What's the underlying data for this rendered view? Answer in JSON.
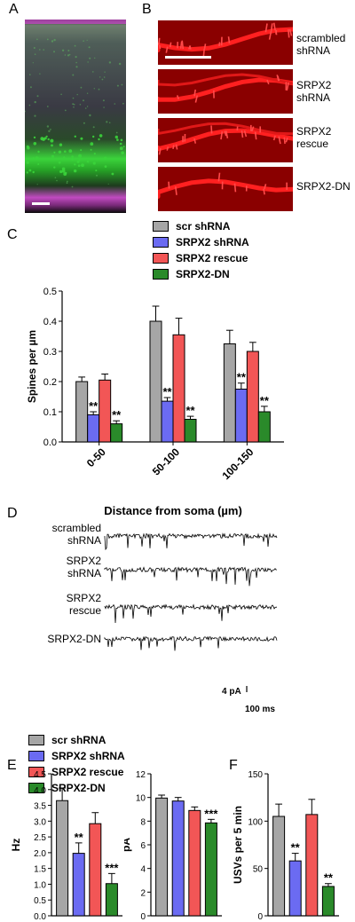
{
  "panels": {
    "a": "A",
    "b": "B",
    "c": "C",
    "d": "D",
    "e": "E",
    "f": "F"
  },
  "panel_b_labels": [
    [
      "scrambled",
      "shRNA"
    ],
    [
      "SRPX2",
      "shRNA"
    ],
    [
      "SRPX2",
      "rescue"
    ],
    [
      "SRPX2-DN"
    ]
  ],
  "panel_d_labels": [
    [
      "scrambled",
      "shRNA"
    ],
    [
      "SRPX2",
      "shRNA"
    ],
    [
      "SRPX2",
      "rescue"
    ],
    [
      "SRPX2-DN"
    ]
  ],
  "scale_bar": {
    "y_label": "4 pA",
    "x_label": "100 ms"
  },
  "legend": [
    {
      "label": "scr shRNA",
      "color": "#a6a6a6"
    },
    {
      "label": "SRPX2 shRNA",
      "color": "#6b6bf2"
    },
    {
      "label": "SRPX2 rescue",
      "color": "#f25656"
    },
    {
      "label": "SRPX2-DN",
      "color": "#2a8a2a"
    }
  ],
  "colors": {
    "fluor_green": "#3bd43b",
    "fluor_magenta": "#c04ac0",
    "dendrite_red": "#ff2020",
    "dendrite_bg": "#8a0000"
  },
  "chart_data": [
    {
      "id": "C",
      "type": "bar",
      "categories": [
        "0-50",
        "50-100",
        "100-150"
      ],
      "series": [
        {
          "name": "scr shRNA",
          "values": [
            0.2,
            0.4,
            0.325
          ],
          "errors": [
            0.015,
            0.05,
            0.045
          ]
        },
        {
          "name": "SRPX2 shRNA",
          "values": [
            0.09,
            0.135,
            0.175
          ],
          "errors": [
            0.01,
            0.012,
            0.02
          ]
        },
        {
          "name": "SRPX2 rescue",
          "values": [
            0.205,
            0.355,
            0.3
          ],
          "errors": [
            0.02,
            0.055,
            0.03
          ]
        },
        {
          "name": "SRPX2-DN",
          "values": [
            0.06,
            0.075,
            0.1
          ],
          "errors": [
            0.01,
            0.01,
            0.018
          ]
        }
      ],
      "annotations": [
        [
          "",
          "**",
          "",
          "**"
        ],
        [
          "",
          "**",
          "",
          "**"
        ],
        [
          "",
          "**",
          "",
          "**"
        ]
      ],
      "ylabel": "Spines per µm",
      "xlabel": "Distance from soma (µm)",
      "ylim": [
        0,
        0.5
      ],
      "yticks": [
        "0.0",
        "0.1",
        "0.2",
        "0.3",
        "0.4",
        "0.5"
      ]
    },
    {
      "id": "E1",
      "type": "bar",
      "categories": [
        "scr shRNA",
        "SRPX2 shRNA",
        "SRPX2 rescue",
        "SRPX2-DN"
      ],
      "values": [
        3.65,
        1.98,
        2.92,
        1.02
      ],
      "errors": [
        0.4,
        0.33,
        0.35,
        0.32
      ],
      "annotations": [
        "",
        "**",
        "",
        "***"
      ],
      "ylabel": "Hz",
      "ylim": [
        0,
        4.5
      ],
      "yticks": [
        "0.0",
        "0.5",
        "1.0",
        "1.5",
        "2.0",
        "2.5",
        "3.0",
        "3.5",
        "4.0",
        "4.5"
      ]
    },
    {
      "id": "E2",
      "type": "bar",
      "categories": [
        "scr shRNA",
        "SRPX2 shRNA",
        "SRPX2 rescue",
        "SRPX2-DN"
      ],
      "values": [
        9.95,
        9.7,
        8.9,
        7.85
      ],
      "errors": [
        0.25,
        0.3,
        0.3,
        0.3
      ],
      "annotations": [
        "",
        "",
        "",
        "***"
      ],
      "ylabel": "pA",
      "ylim": [
        0,
        12
      ],
      "yticks": [
        "0",
        "2",
        "4",
        "6",
        "8",
        "10",
        "12"
      ]
    },
    {
      "id": "F",
      "type": "bar",
      "categories": [
        "scr shRNA",
        "SRPX2 shRNA",
        "SRPX2 rescue",
        "SRPX2-DN"
      ],
      "values": [
        105,
        58,
        107,
        31
      ],
      "errors": [
        13,
        8,
        16,
        3
      ],
      "annotations": [
        "",
        "**",
        "",
        "**"
      ],
      "ylabel": "USVs per 5 min",
      "ylim": [
        0,
        150
      ],
      "yticks": [
        "0",
        "50",
        "100",
        "150"
      ]
    }
  ]
}
